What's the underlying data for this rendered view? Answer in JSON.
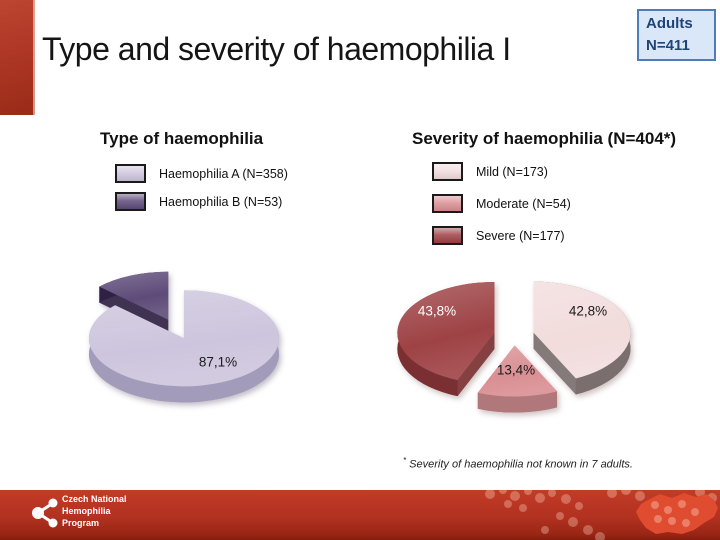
{
  "slide": {
    "title": "Type and severity of haemophilia I",
    "badge": {
      "line1": "Adults",
      "line2": "N=411"
    },
    "footnote": {
      "symbol": "*",
      "text": " Severity of haemophilia not known in 7 adults."
    },
    "footer": {
      "org_line1": "Czech National",
      "org_line2": "Hemophilia",
      "org_line3": "Program"
    }
  },
  "chart_data": [
    {
      "type": "pie",
      "title": "Type of haemophilia",
      "legend_position": "top",
      "slices": [
        {
          "name": "Haemophilia A",
          "legend_label": "Haemophilia A (N=358)",
          "n": 358,
          "value_pct": 87.1,
          "data_label": "87,1%",
          "color": "#cdc5dd",
          "side_color": "#a39bba",
          "label_color": "#1a1a1a"
        },
        {
          "name": "Haemophilia B",
          "legend_label": "Haemophilia B (N=53)",
          "n": 53,
          "value_pct": 12.9,
          "data_label": "",
          "color": "#5e4b79",
          "side_color": "#2f2143",
          "label_color": "#1a1a1a"
        }
      ]
    },
    {
      "type": "pie",
      "title": "Severity of haemophilia (N=404*)",
      "legend_position": "top",
      "slices": [
        {
          "name": "Mild",
          "legend_label": "Mild (N=173)",
          "n": 173,
          "value_pct": 42.8,
          "data_label": "42,8%",
          "color": "#f2dcdc",
          "side_color": "#7a6e6e",
          "label_color": "#1a1a1a"
        },
        {
          "name": "Moderate",
          "legend_label": "Moderate (N=54)",
          "n": 54,
          "value_pct": 13.4,
          "data_label": "13,4%",
          "color": "#d98f93",
          "side_color": "#b1787c",
          "label_color": "#1a1a1a"
        },
        {
          "name": "Severe",
          "legend_label": "Severe (N=177)",
          "n": 177,
          "value_pct": 43.8,
          "data_label": "43,8%",
          "color": "#9e4245",
          "side_color": "#7a3032",
          "label_color": "#ffffff"
        }
      ]
    }
  ],
  "colors": {
    "accent_red": "#ab3523",
    "badge_bg": "#d9e7f8",
    "badge_border": "#4f7dbb",
    "badge_text": "#1f4478",
    "footer_red": "#b23120"
  }
}
